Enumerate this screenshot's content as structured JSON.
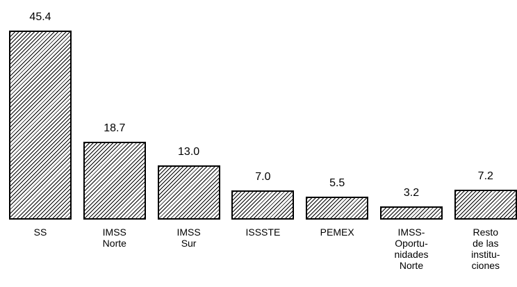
{
  "chart_data": {
    "type": "bar",
    "categories": [
      "SS",
      "IMSS\nNorte",
      "IMSS\nSur",
      "ISSSTE",
      "PEMEX",
      "IMSS-\nOportu-\nnidades\nNorte",
      "Resto\nde las\ninstitu-\nciones"
    ],
    "values": [
      45.4,
      18.7,
      13.0,
      7.0,
      5.5,
      3.2,
      7.2
    ],
    "value_labels": [
      "45.4",
      "18.7",
      "13.0",
      "7.0",
      "5.5",
      "3.2",
      "7.2"
    ],
    "color": "#000000"
  }
}
